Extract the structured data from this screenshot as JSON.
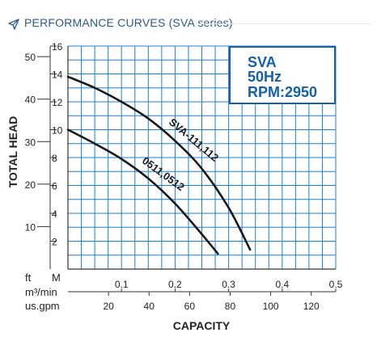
{
  "header": {
    "title": "PERFORMANCE CURVES (SVA series)",
    "icon": "paper-plane-icon"
  },
  "chart_data": {
    "type": "line",
    "info_box": {
      "line1": "SVA",
      "line2": "50Hz",
      "line3": "RPM:2950",
      "color": "#1560a8"
    },
    "grid": true,
    "grid_color": "#1f7fd0",
    "curve_color": "#1a1a1a",
    "x_axis": {
      "unit_label": "m³/min",
      "range": [
        0,
        0.5
      ],
      "ticks": [
        0.1,
        0.2,
        0.3,
        0.4,
        0.5
      ],
      "tick_labels": [
        "0.1",
        "0.2",
        "0.3",
        "0.4",
        "0.5"
      ]
    },
    "x_axis_secondary": {
      "unit_label": "us.gpm",
      "ticks": [
        20,
        40,
        60,
        80,
        100,
        120
      ],
      "tick_labels": [
        "20",
        "40",
        "60",
        "80",
        "100",
        "120"
      ]
    },
    "xlabel": "CAPACITY",
    "y_axis": {
      "unit_label": "M",
      "range": [
        0,
        16
      ],
      "ticks": [
        2,
        4,
        6,
        8,
        10,
        12,
        14,
        16
      ],
      "tick_labels": [
        "2",
        "4",
        "6",
        "8",
        "10",
        "12",
        "14",
        "16"
      ]
    },
    "y_axis_secondary": {
      "unit_label": "ft",
      "ticks": [
        10,
        20,
        30,
        40,
        50
      ],
      "tick_labels": [
        "10",
        "20",
        "30",
        "40",
        "50"
      ]
    },
    "ylabel": "TOTAL HEAD",
    "series": [
      {
        "name": "SVA-111,112",
        "x": [
          0.0,
          0.05,
          0.1,
          0.15,
          0.2,
          0.25,
          0.3,
          0.34
        ],
        "y": [
          13.8,
          13.0,
          12.0,
          10.8,
          9.2,
          7.2,
          4.4,
          1.4
        ]
      },
      {
        "name": "0511,0512",
        "x": [
          0.0,
          0.05,
          0.1,
          0.15,
          0.2,
          0.25,
          0.28
        ],
        "y": [
          10.0,
          9.0,
          7.9,
          6.5,
          4.7,
          2.5,
          1.1
        ]
      }
    ]
  }
}
